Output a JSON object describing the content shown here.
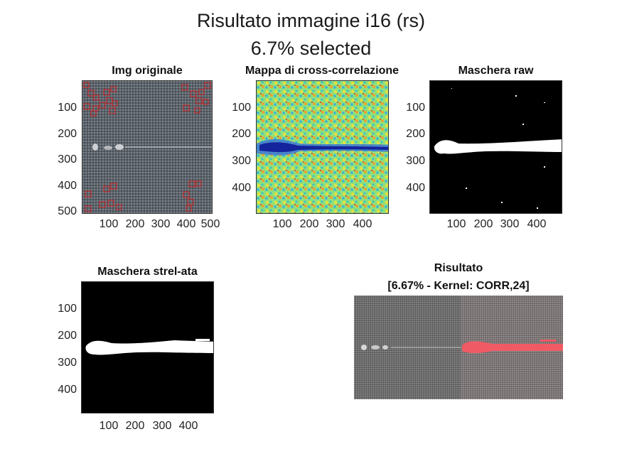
{
  "figure": {
    "title_line1": "Risultato immagine i16 (rs)",
    "title_line2": "6.7% selected"
  },
  "panels": {
    "original": {
      "title": "Img originale",
      "yticks": [
        "100",
        "200",
        "300",
        "400",
        "500"
      ],
      "xticks": [
        "100",
        "200",
        "300",
        "400",
        "500"
      ]
    },
    "xcorr": {
      "title": "Mappa di cross-correlazione",
      "yticks": [
        "100",
        "200",
        "300",
        "400"
      ],
      "xticks": [
        "100",
        "200",
        "300",
        "400"
      ]
    },
    "raw_mask": {
      "title": "Maschera raw",
      "yticks": [
        "100",
        "200",
        "300",
        "400"
      ],
      "xticks": [
        "100",
        "200",
        "300",
        "400"
      ]
    },
    "strel_mask": {
      "title": "Maschera strel-ata",
      "yticks": [
        "100",
        "200",
        "300",
        "400"
      ],
      "xticks": [
        "100",
        "200",
        "300",
        "400"
      ]
    },
    "result": {
      "title_line1": "Risultato",
      "title_line2": "[6.67% - Kernel: CORR,24]"
    }
  },
  "colors": {
    "fabric": "#5a6068",
    "marker": "#d42020",
    "xcorr_base": "#8fe07a",
    "xcorr_defect": "#1a2fa8",
    "mask_bg": "#000000",
    "mask_fg": "#ffffff",
    "overlay": "#f05a64"
  }
}
